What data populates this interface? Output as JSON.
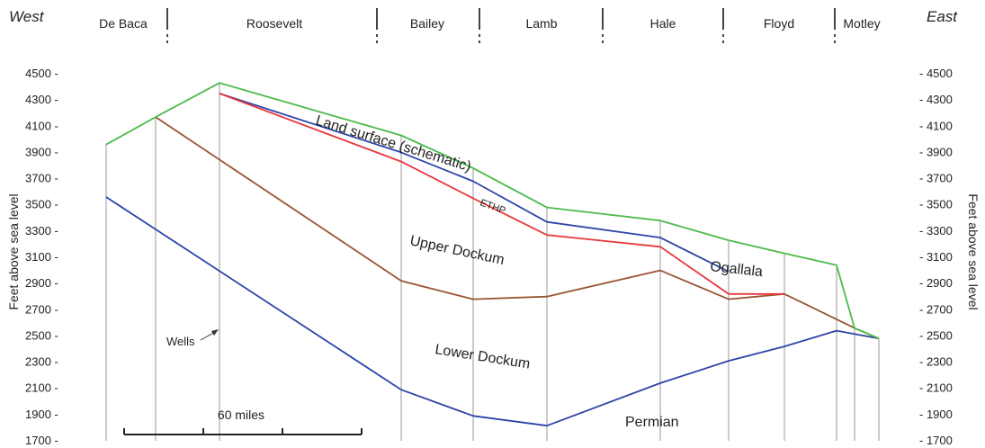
{
  "header": {
    "west_label": "West",
    "east_label": "East",
    "counties": [
      "De Baca",
      "Roosevelt",
      "Bailey",
      "Lamb",
      "Hale",
      "Floyd",
      "Motley"
    ]
  },
  "axes": {
    "y_label_left": "Feet above sea level",
    "y_label_right": "Feet above sea level",
    "y_ticks": [
      1700,
      1900,
      2100,
      2300,
      2500,
      2700,
      2900,
      3100,
      3300,
      3500,
      3700,
      3900,
      4100,
      4300,
      4500
    ],
    "ylim": [
      1700,
      4500
    ]
  },
  "labels": {
    "land_surface": "Land surface (schematic)",
    "ethp": "ETHP",
    "upper_dockum": "Upper Dockum",
    "lower_dockum": "Lower Dockum",
    "ogallala": "Ogallala",
    "permian": "Permian",
    "wells": "Wells",
    "scale": "60 miles"
  },
  "colors": {
    "land_surface": "#4cbb4a",
    "ethp": "#e8383d",
    "ogallala_base": "#2f44a8",
    "upper_lower_contact": "#9a5434",
    "permian_top": "#2f44a8",
    "wells": "#9a9a9a",
    "dividers": "#444444"
  },
  "surfaces": {
    "land_surface": [
      [
        0,
        3960
      ],
      [
        1,
        4170
      ],
      [
        2,
        4430
      ],
      [
        3,
        4030
      ],
      [
        4,
        3780
      ],
      [
        5,
        3480
      ],
      [
        6,
        3380
      ],
      [
        7,
        3230
      ],
      [
        8,
        3130
      ],
      [
        9,
        3040
      ],
      [
        10,
        2560
      ],
      [
        11,
        2480
      ]
    ],
    "ogallala_base": [
      [
        2,
        4350
      ],
      [
        3,
        3900
      ],
      [
        4,
        3680
      ],
      [
        5,
        3370
      ],
      [
        6,
        3250
      ],
      [
        7,
        2990
      ]
    ],
    "ethp": [
      [
        2,
        4350
      ],
      [
        3,
        3830
      ],
      [
        4,
        3550
      ],
      [
        5,
        3270
      ],
      [
        6,
        3180
      ],
      [
        7,
        2820
      ],
      [
        8,
        2820
      ]
    ],
    "upper_lower_contact": [
      [
        1,
        4170
      ],
      [
        3,
        2920
      ],
      [
        4,
        2780
      ],
      [
        5,
        2800
      ],
      [
        6,
        3000
      ],
      [
        7,
        2780
      ],
      [
        8,
        2820
      ],
      [
        10,
        2560
      ],
      [
        11,
        2480
      ]
    ],
    "permian_top": [
      [
        0,
        3560
      ],
      [
        3,
        2090
      ],
      [
        4,
        1890
      ],
      [
        5,
        1815
      ],
      [
        6,
        2140
      ],
      [
        7,
        2310
      ],
      [
        8,
        2420
      ],
      [
        9,
        2540
      ],
      [
        11,
        2480
      ]
    ]
  }
}
